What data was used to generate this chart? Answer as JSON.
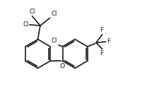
{
  "bg_color": "#ffffff",
  "line_color": "#1a1a1a",
  "line_width": 1.2,
  "font_size_labels": 6.2,
  "figsize": [
    2.25,
    1.34
  ],
  "dpi": 100,
  "xlim": [
    -1.6,
    1.7
  ],
  "ylim": [
    -0.75,
    0.85
  ],
  "bl": 0.3
}
